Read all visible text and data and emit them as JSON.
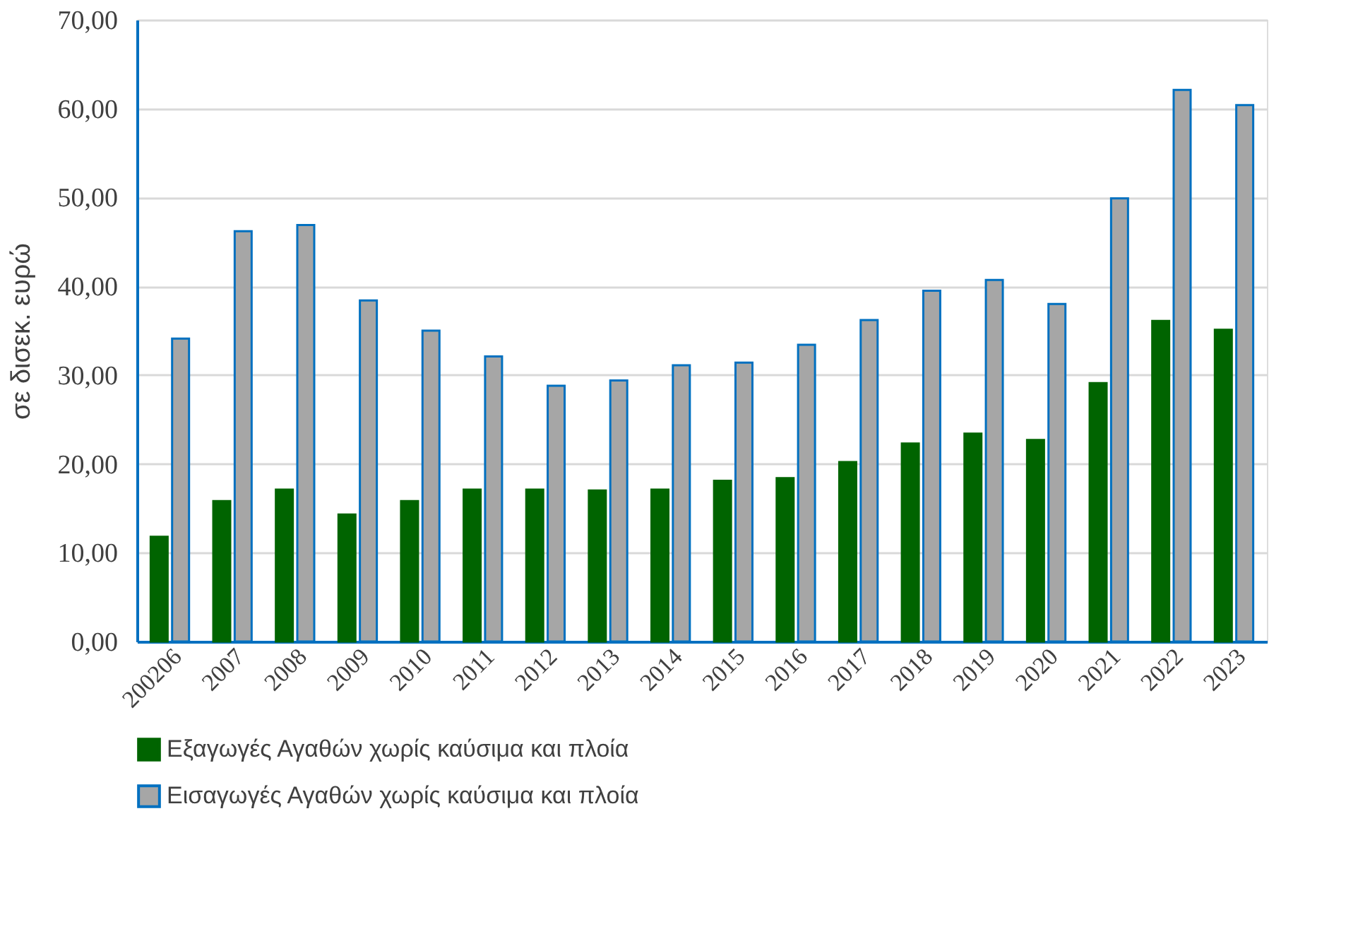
{
  "chart_data": {
    "type": "bar",
    "ylabel": "σε δισεκ. ευρώ",
    "categories": [
      "200206",
      "2007",
      "2008",
      "2009",
      "2010",
      "2011",
      "2012",
      "2013",
      "2014",
      "2015",
      "2016",
      "2017",
      "2018",
      "2019",
      "2020",
      "2021",
      "2022",
      "2023"
    ],
    "series": [
      {
        "name": "Εξαγωγές Αγαθών χωρίς καύσιμα και πλοία",
        "color": "#006400",
        "values": [
          11.8,
          15.8,
          17.1,
          14.3,
          15.8,
          17.1,
          17.1,
          17.0,
          17.1,
          18.1,
          18.4,
          20.2,
          22.3,
          23.4,
          22.7,
          29.1,
          36.1,
          35.1
        ]
      },
      {
        "name": "Εισαγωγές Αγαθών χωρίς καύσιμα και πλοία",
        "color": "#a6a6a6",
        "values": [
          34.1,
          46.2,
          46.9,
          38.4,
          35.0,
          32.1,
          28.8,
          29.4,
          31.1,
          31.4,
          33.4,
          36.2,
          39.5,
          40.7,
          38.0,
          49.9,
          62.1,
          60.4
        ]
      }
    ],
    "ylim": [
      0,
      70
    ],
    "yticks": [
      {
        "value": 0,
        "label": "0,00"
      },
      {
        "value": 10,
        "label": "10,00"
      },
      {
        "value": 20,
        "label": "20,00"
      },
      {
        "value": 30,
        "label": "30,00"
      },
      {
        "value": 40,
        "label": "40,00"
      },
      {
        "value": 50,
        "label": "50,00"
      },
      {
        "value": 60,
        "label": "60,00"
      },
      {
        "value": 70,
        "label": "70,00"
      }
    ],
    "grid": "y",
    "legend": "bottom"
  }
}
